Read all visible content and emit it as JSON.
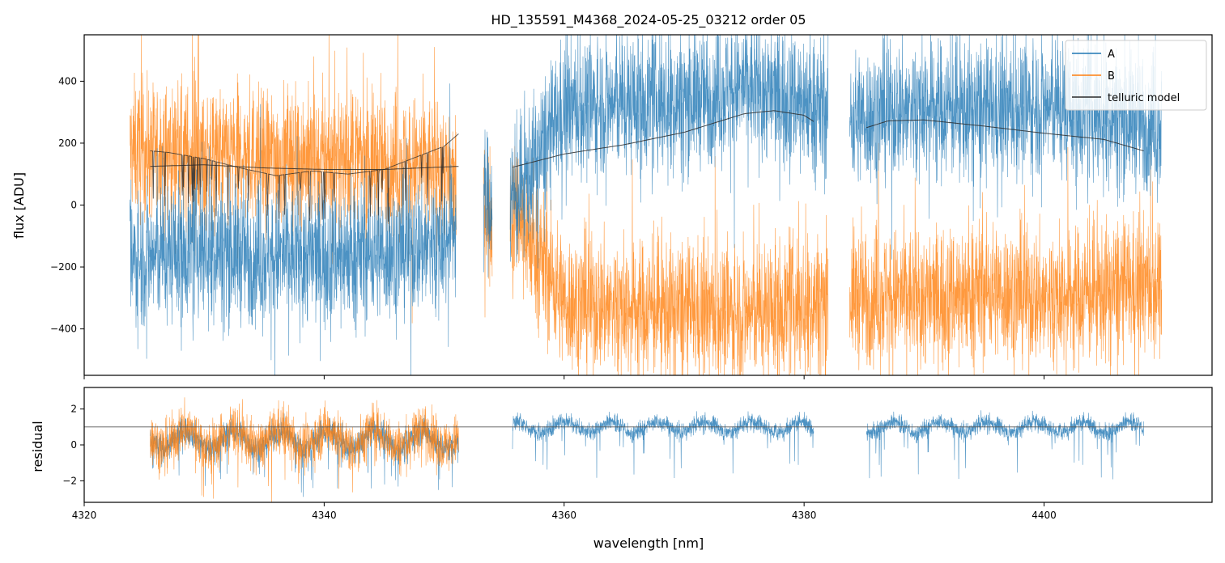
{
  "chart_data": [
    {
      "type": "line",
      "panel": "top",
      "title": "HD_135591_M4368_2024-05-25_03212  order 05",
      "xlabel": "",
      "ylabel": "flux [ADU]",
      "xlim": [
        4320,
        4414
      ],
      "ylim": [
        -550,
        550
      ],
      "yticks": [
        -400,
        -200,
        0,
        200,
        400
      ],
      "yticklabels": [
        "−400",
        "−200",
        "0",
        "200",
        "400"
      ],
      "xticks": [
        4320,
        4340,
        4360,
        4380,
        4400
      ],
      "grid": false,
      "legend_position": "top-right",
      "colors": {
        "A": "#1f77b4",
        "B": "#ff7f0e",
        "telluric": "#2a2a2a"
      },
      "segments": [
        [
          4323.8,
          4351.0
        ],
        [
          4353.3,
          4354.0
        ],
        [
          4355.5,
          4382.0
        ],
        [
          4383.8,
          4409.8
        ]
      ],
      "series": [
        {
          "name": "A",
          "envelope_x": [
            4324,
            4330,
            4335,
            4340,
            4345,
            4350,
            4352,
            4356,
            4360,
            4365,
            4370,
            4375,
            4380,
            4382,
            4384,
            4390,
            4395,
            4400,
            4405,
            4409.8
          ],
          "envelope_y": [
            -180,
            -130,
            -170,
            -160,
            -150,
            -120,
            20,
            20,
            310,
            330,
            340,
            380,
            340,
            300,
            280,
            320,
            300,
            320,
            300,
            260
          ]
        },
        {
          "name": "B",
          "envelope_x": [
            4324,
            4330,
            4335,
            4340,
            4345,
            4350,
            4352,
            4356,
            4360,
            4365,
            4370,
            4375,
            4380,
            4382,
            4384,
            4390,
            4395,
            4400,
            4405,
            4409.8
          ],
          "envelope_y": [
            180,
            150,
            160,
            150,
            140,
            120,
            -20,
            -20,
            -310,
            -330,
            -340,
            -350,
            -320,
            -300,
            -290,
            -300,
            -270,
            -300,
            -280,
            -250
          ]
        },
        {
          "name": "telluric model",
          "smooth_pieces": [
            {
              "x": [
                4325.5,
                4330,
                4335,
                4340,
                4345,
                4351.2
              ],
              "y": [
                125,
                130,
                120,
                115,
                115,
                125
              ]
            },
            {
              "x": [
                4355.7,
                4360,
                4365,
                4370,
                4375,
                4377.5,
                4380,
                4380.8
              ],
              "y": [
                122,
                165,
                195,
                235,
                295,
                305,
                290,
                270
              ]
            },
            {
              "x": [
                4385.2,
                4387,
                4390,
                4395,
                4400,
                4405,
                4408.3
              ],
              "y": [
                250,
                272,
                275,
                255,
                232,
                212,
                175
              ]
            }
          ],
          "line_pieces": [
            {
              "x": [
                4325.5,
                4327,
                4330,
                4333,
                4336,
                4339,
                4342,
                4345,
                4348,
                4350,
                4351.2
              ],
              "y": [
                175,
                170,
                150,
                120,
                95,
                110,
                100,
                115,
                160,
                190,
                230
              ]
            }
          ]
        }
      ]
    },
    {
      "type": "line",
      "panel": "bottom",
      "title": "",
      "xlabel": "wavelength [nm]",
      "ylabel": "residual",
      "xlim": [
        4320,
        4414
      ],
      "ylim": [
        -3.2,
        3.2
      ],
      "yticks": [
        -2,
        0,
        2
      ],
      "yticklabels": [
        "−2",
        "0",
        "2"
      ],
      "xticks": [
        4320,
        4340,
        4360,
        4380,
        4400
      ],
      "xticklabels": [
        "4320",
        "4340",
        "4360",
        "4380",
        "4400"
      ],
      "reference_line_y": 1.0,
      "grid": false,
      "series": [
        {
          "name": "A",
          "segments": [
            [
              4325.5,
              4351.2
            ],
            [
              4355.7,
              4380.8
            ],
            [
              4385.2,
              4408.3
            ]
          ],
          "center": 0.3,
          "spread": 0.9
        },
        {
          "name": "B",
          "segments": [
            [
              4325.5,
              4351.2
            ]
          ],
          "center": 0.4,
          "spread": 1.6
        }
      ]
    }
  ]
}
